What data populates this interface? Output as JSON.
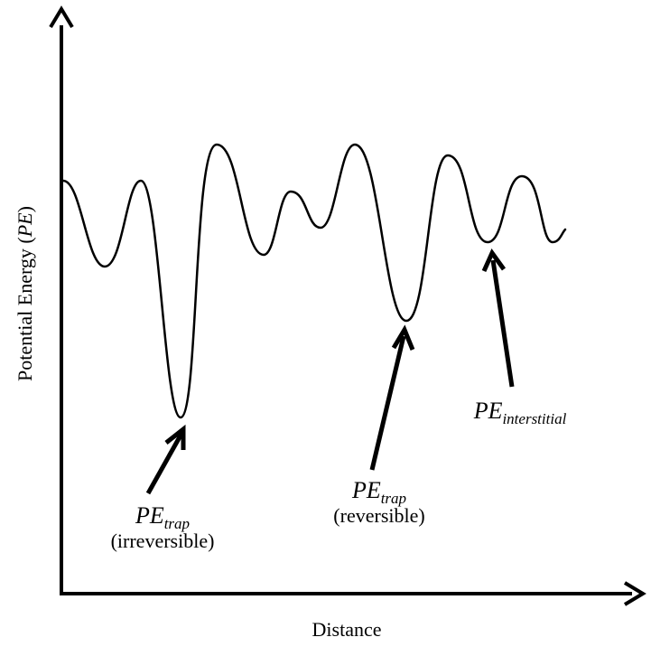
{
  "axes": {
    "y_label_prefix": "Potential Energy (",
    "y_label_symbol": "PE",
    "y_label_suffix": ")",
    "x_label": "Distance"
  },
  "annotations": {
    "irreversible": {
      "symbol": "PE",
      "subscript": "trap",
      "note": "(irreversible)"
    },
    "reversible": {
      "symbol": "PE",
      "subscript": "trap",
      "note": "(reversible)"
    },
    "interstitial": {
      "symbol": "PE",
      "subscript": "interstitial"
    }
  },
  "colors": {
    "line": "#000000",
    "background": "#ffffff"
  }
}
